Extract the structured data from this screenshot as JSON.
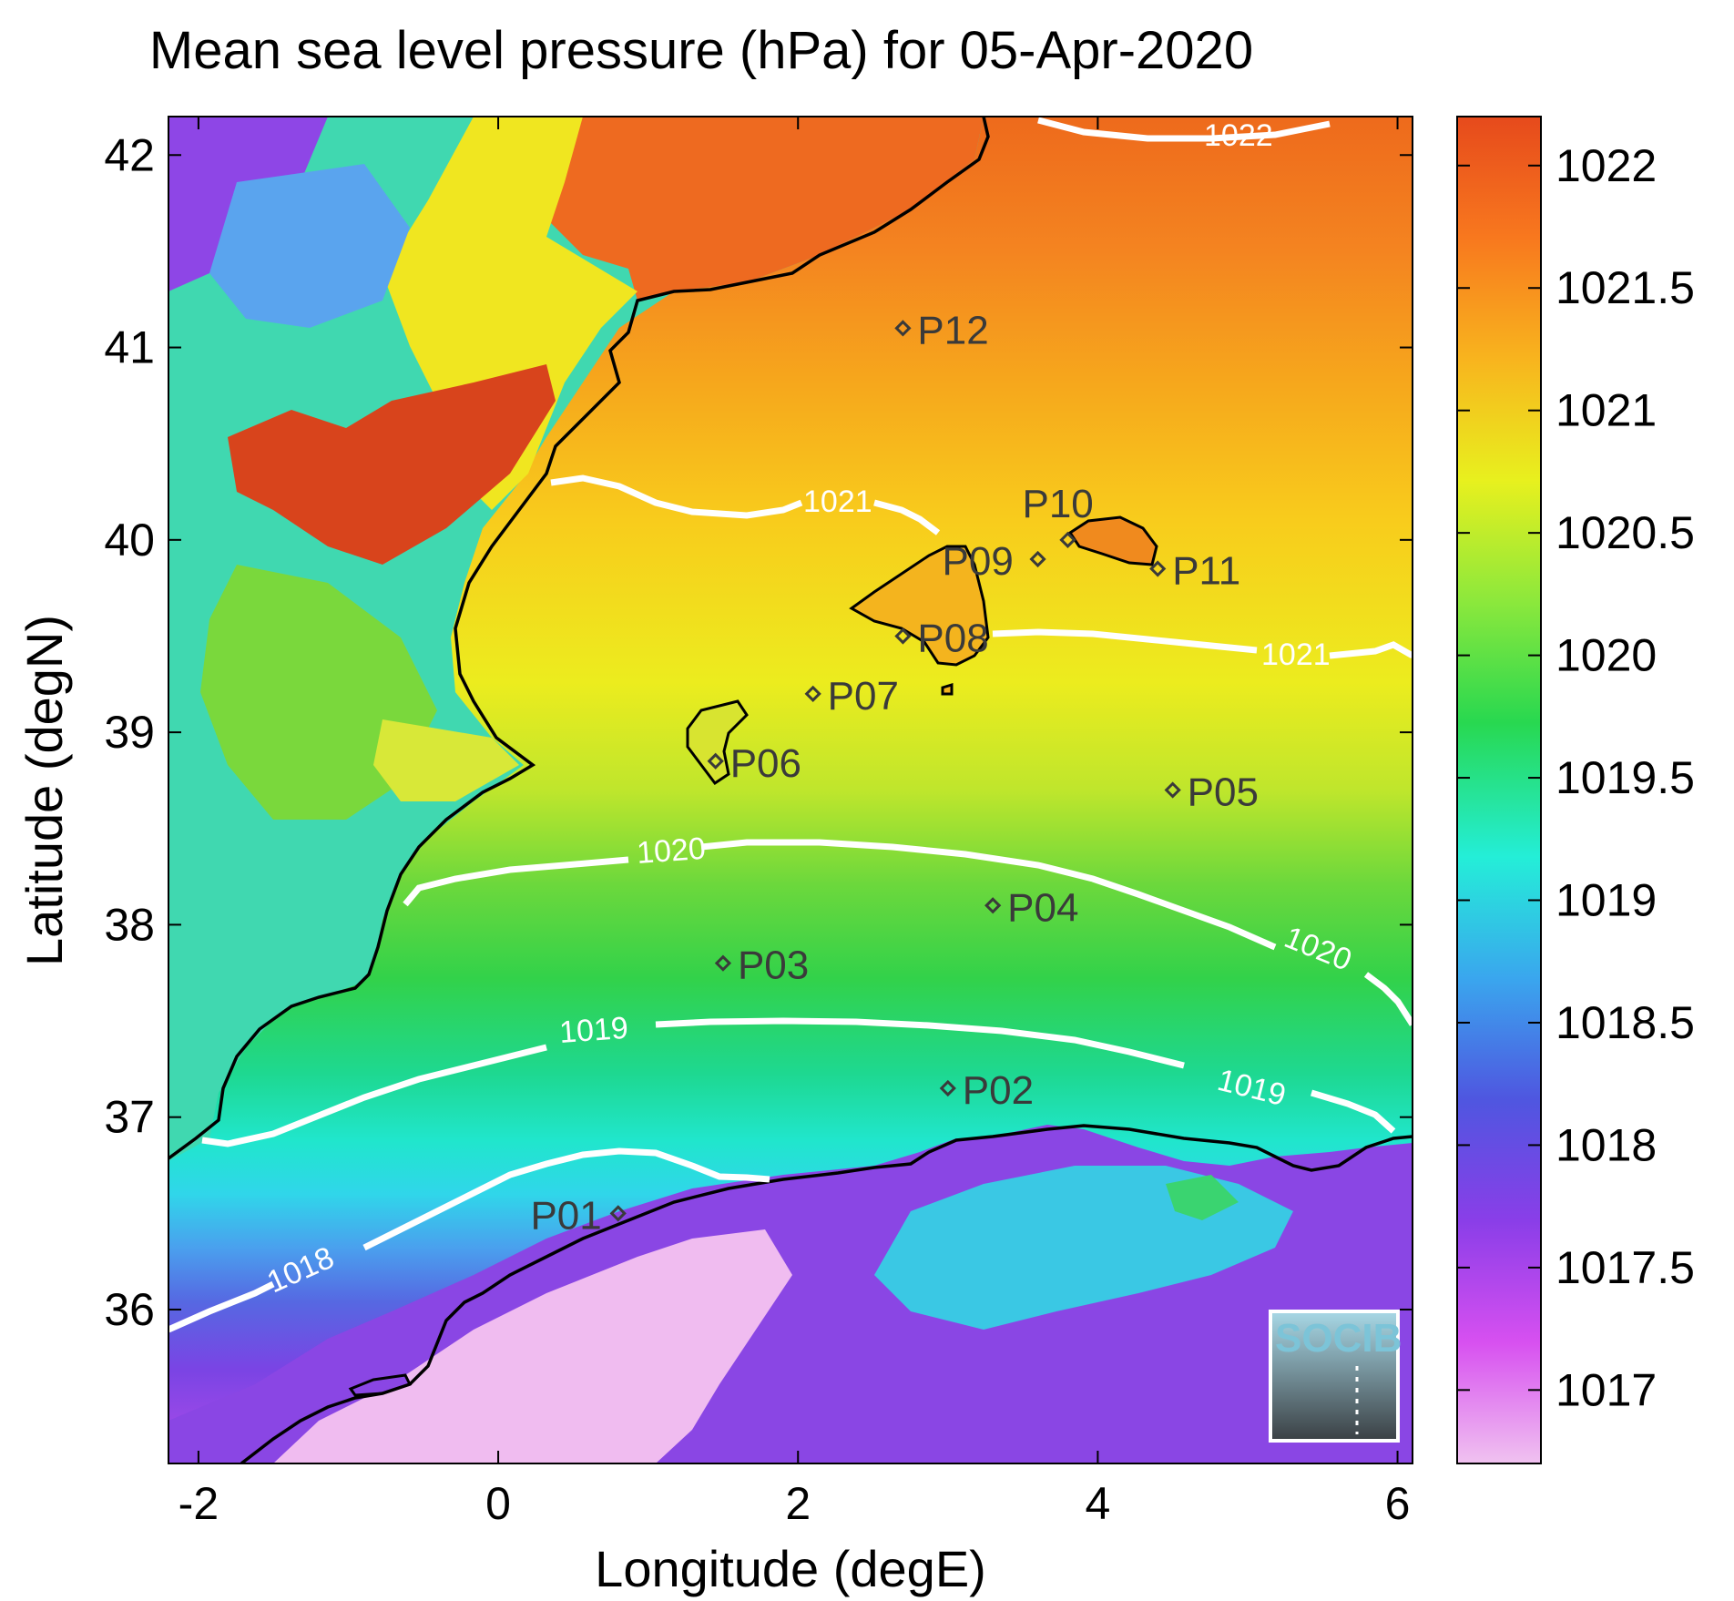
{
  "title": "Mean sea level pressure (hPa) for 05-Apr-2020",
  "map": {
    "xlabel": "Longitude (degE)",
    "ylabel": "Latitude (degN)",
    "lon_range": [
      -2.2,
      6.1
    ],
    "lat_range": [
      35.2,
      42.2
    ],
    "x_ticks": [
      "-2",
      "0",
      "2",
      "4",
      "6"
    ],
    "y_ticks": [
      "36",
      "37",
      "38",
      "39",
      "40",
      "41",
      "42"
    ]
  },
  "colorbar": {
    "range": [
      1016.7,
      1022.2
    ],
    "ticks": [
      "1017",
      "1017.5",
      "1018",
      "1018.5",
      "1019",
      "1019.5",
      "1020",
      "1020.5",
      "1021",
      "1021.5",
      "1022"
    ],
    "colors": [
      "#f0c2f0",
      "#d750f0",
      "#8a3ee8",
      "#4f56e0",
      "#3aa6ee",
      "#24eed8",
      "#28d850",
      "#8ce83c",
      "#e8f01e",
      "#f8b41e",
      "#f8781e",
      "#e64a1c"
    ]
  },
  "contours": [
    {
      "label": "1018"
    },
    {
      "label": "1019"
    },
    {
      "label": "1020"
    },
    {
      "label": "1021"
    },
    {
      "label": "1022"
    }
  ],
  "points": [
    {
      "name": "P01",
      "lon": 0.8,
      "lat": 36.5
    },
    {
      "name": "P02",
      "lon": 3.0,
      "lat": 37.15
    },
    {
      "name": "P03",
      "lon": 1.5,
      "lat": 37.8
    },
    {
      "name": "P04",
      "lon": 3.3,
      "lat": 38.1
    },
    {
      "name": "P05",
      "lon": 4.5,
      "lat": 38.7
    },
    {
      "name": "P06",
      "lon": 1.45,
      "lat": 38.85
    },
    {
      "name": "P07",
      "lon": 2.1,
      "lat": 39.2
    },
    {
      "name": "P08",
      "lon": 2.7,
      "lat": 39.5
    },
    {
      "name": "P09",
      "lon": 3.6,
      "lat": 39.9
    },
    {
      "name": "P10",
      "lon": 3.8,
      "lat": 40.0
    },
    {
      "name": "P11",
      "lon": 4.4,
      "lat": 39.85
    },
    {
      "name": "P12",
      "lon": 2.7,
      "lat": 41.1
    }
  ],
  "logo": {
    "text": "SOCIB"
  }
}
